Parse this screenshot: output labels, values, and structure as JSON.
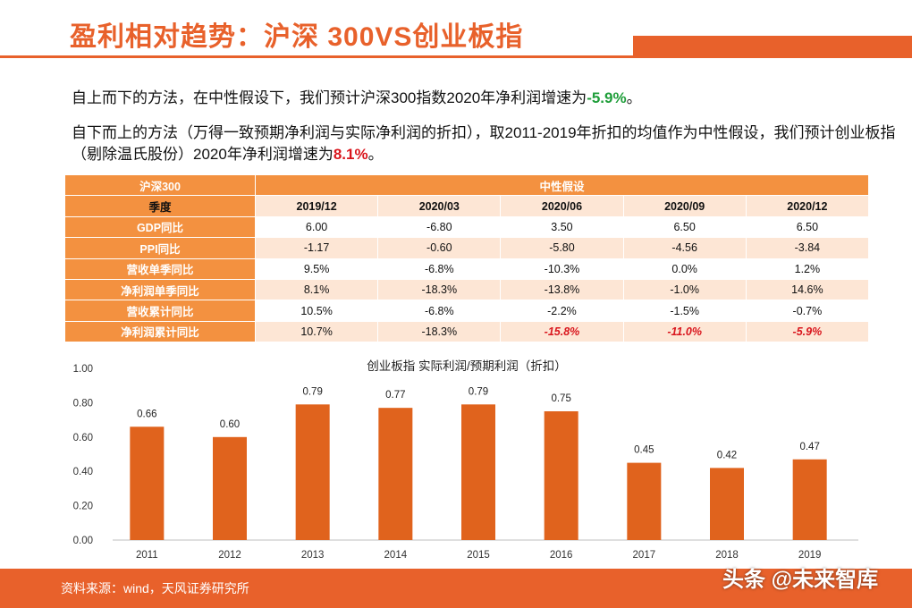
{
  "title": "盈利相对趋势：沪深 300VS创业板指",
  "para1": {
    "text": "自上而下的方法，在中性假设下，我们预计沪深300指数2020年净利润增速为",
    "value": "-5.9%",
    "end": "。"
  },
  "para2": {
    "text": "自下而上的方法（万得一致预期净利润与实际净利润的折扣），取2011-2019年折扣的均值作为中性假设，我们预计创业板指（剔除温氏股份）2020年净利润增速为",
    "value": "8.1%",
    "end": "。"
  },
  "table": {
    "corner": "沪深300",
    "group_header": "中性假设",
    "season_label": "季度",
    "periods": [
      "2019/12",
      "2020/03",
      "2020/06",
      "2020/09",
      "2020/12"
    ],
    "rows": [
      {
        "label": "GDP同比",
        "values": [
          "6.00",
          "-6.80",
          "3.50",
          "6.50",
          "6.50"
        ]
      },
      {
        "label": "PPI同比",
        "values": [
          "-1.17",
          "-0.60",
          "-5.80",
          "-4.56",
          "-3.84"
        ]
      },
      {
        "label": "营收单季同比",
        "values": [
          "9.5%",
          "-6.8%",
          "-10.3%",
          "0.0%",
          "1.2%"
        ]
      },
      {
        "label": "净利润单季同比",
        "values": [
          "8.1%",
          "-18.3%",
          "-13.8%",
          "-1.0%",
          "14.6%"
        ]
      },
      {
        "label": "营收累计同比",
        "values": [
          "10.5%",
          "-6.8%",
          "-2.2%",
          "-1.5%",
          "-0.7%"
        ]
      },
      {
        "label": "净利润累计同比",
        "values": [
          "10.7%",
          "-18.3%",
          "-15.8%",
          "-11.0%",
          "-5.9%"
        ]
      }
    ]
  },
  "chart_data": {
    "type": "bar",
    "title": "创业板指 实际利润/预期利润（折扣）",
    "categories": [
      "2011",
      "2012",
      "2013",
      "2014",
      "2015",
      "2016",
      "2017",
      "2018",
      "2019"
    ],
    "values": [
      0.66,
      0.6,
      0.79,
      0.77,
      0.79,
      0.75,
      0.45,
      0.42,
      0.47
    ],
    "data_labels": [
      "0.66",
      "0.60",
      "0.79",
      "0.77",
      "0.79",
      "0.75",
      "0.45",
      "0.42",
      "0.47"
    ],
    "ylim": [
      0,
      1.0
    ],
    "yticks": [
      "0.00",
      "0.20",
      "0.40",
      "0.60",
      "0.80",
      "1.00"
    ],
    "bar_color": "#e0631d",
    "grid": false,
    "legend": "none"
  },
  "footer": {
    "source": "资料来源：wind，天风证券研究所",
    "watermark": "头条 @未来智库"
  },
  "colors": {
    "accent": "#e8612b",
    "table_header": "#f39140",
    "table_stripe": "#fde6d5",
    "negative_highlight": "#d9161d",
    "positive_highlight": "#1f9e3a"
  }
}
